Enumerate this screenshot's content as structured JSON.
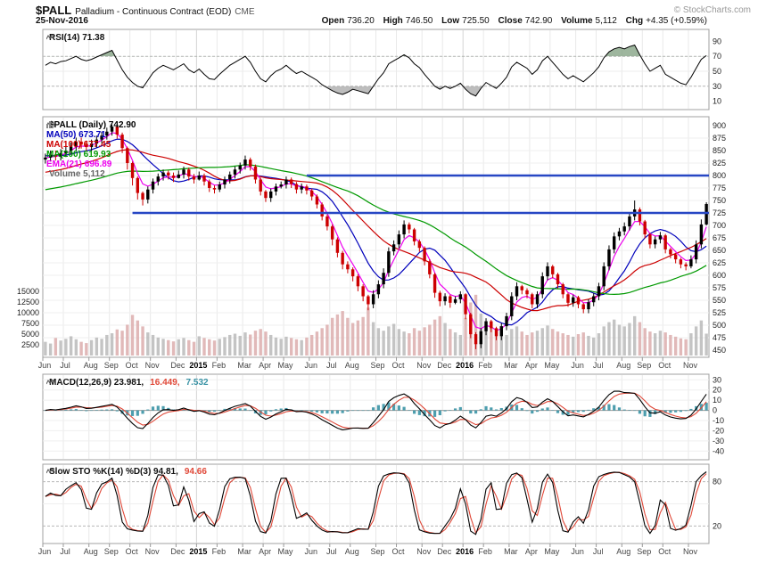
{
  "header": {
    "symbol": "$PALL",
    "description": "Palladium - Continuous Contract (EOD)",
    "exchange": "CME",
    "date": "25-Nov-2016",
    "copyright": "© StockCharts.com",
    "quote": {
      "open_label": "Open",
      "open_value": "736.20",
      "high_label": "High",
      "high_value": "746.50",
      "low_label": "Low",
      "low_value": "725.50",
      "close_label": "Close",
      "close_value": "742.90",
      "volume_label": "Volume",
      "volume_value": "5,112",
      "chg_label": "Chg",
      "chg_value": "+4.35 (+0.59%)"
    }
  },
  "panels": {
    "rsi": {
      "legend": "RSI(14) 71.38"
    },
    "main": {
      "symbol_legend": "$PALL (Daily) 742.90",
      "volume_legend": "Volume 5,112"
    },
    "macd": {
      "legend_main": "MACD(12,26,9) 23.981,",
      "legend_signal": "16.449,",
      "legend_hist": "7.532"
    },
    "sto": {
      "legend_main": "Slow STO %K(14) %D(3) 94.81,",
      "legend_signal": "94.66"
    }
  },
  "chart_data": [
    {
      "id": "rsi",
      "type": "line",
      "label": "RSI(14)",
      "last": 71.38,
      "ylim": [
        0,
        100
      ],
      "yticks": [
        90,
        70,
        50,
        30,
        10
      ],
      "overbought": 70,
      "oversold": 30,
      "line_color": "#000000",
      "fill_above_color": "#7d9e7d",
      "fill_below_color": "#9a9a9a",
      "values": [
        58,
        62,
        60,
        63,
        64,
        67,
        70,
        66,
        64,
        66,
        69,
        72,
        75,
        78,
        65,
        52,
        42,
        35,
        30,
        28,
        38,
        48,
        54,
        58,
        55,
        52,
        56,
        60,
        52,
        48,
        53,
        46,
        40,
        39,
        46,
        52,
        58,
        62,
        66,
        70,
        62,
        50,
        40,
        36,
        44,
        50,
        53,
        58,
        52,
        47,
        50,
        46,
        42,
        38,
        32,
        28,
        24,
        21,
        19,
        22,
        26,
        24,
        22,
        20,
        30,
        40,
        48,
        60,
        64,
        68,
        72,
        68,
        60,
        55,
        46,
        38,
        30,
        26,
        30,
        27,
        30,
        34,
        26,
        20,
        17,
        27,
        35,
        31,
        27,
        34,
        42,
        56,
        62,
        58,
        54,
        46,
        52,
        64,
        70,
        62,
        54,
        46,
        40,
        44,
        40,
        36,
        42,
        48,
        56,
        68,
        76,
        80,
        82,
        80,
        83,
        85,
        72,
        60,
        50,
        54,
        58,
        46,
        42,
        38,
        34,
        32,
        42,
        54,
        66,
        71
      ]
    },
    {
      "id": "price",
      "type": "candlestick",
      "label": "$PALL (Daily)",
      "last": 742.9,
      "ylim": [
        450,
        900
      ],
      "yticks": [
        900,
        875,
        850,
        825,
        800,
        775,
        750,
        725,
        700,
        675,
        650,
        625,
        600,
        575,
        550,
        525,
        500,
        475,
        450
      ],
      "up_color": "#000000",
      "down_color": "#cc0000",
      "vol_up_color": "#b5b5b5",
      "vol_down_color": "#d9a8a8",
      "annotation_color": "#2747c4",
      "annotations": [
        {
          "level": 800,
          "start_week": 51
        },
        {
          "level": 725,
          "start_week": 17
        }
      ],
      "x_labels": [
        "Jun",
        "Jul",
        "Aug",
        "Sep",
        "Oct",
        "Nov",
        "Dec",
        "2015",
        "Feb",
        "Mar",
        "Apr",
        "May",
        "Jun",
        "Jul",
        "Aug",
        "Sep",
        "Oct",
        "Nov",
        "Dec",
        "2016",
        "Feb",
        "Mar",
        "Apr",
        "May",
        "Jun",
        "Jul",
        "Aug",
        "Sep",
        "Oct",
        "Nov"
      ],
      "weeks_per_month": [
        4,
        5,
        4,
        4,
        4,
        5,
        4,
        4,
        5,
        4,
        4,
        5,
        4,
        4,
        5,
        4,
        5,
        4,
        4,
        4,
        5,
        4,
        4,
        5,
        4,
        5,
        4,
        4,
        5,
        4
      ],
      "year_label_indices": [
        7,
        19
      ],
      "open_first": 832,
      "close": [
        836,
        842,
        838,
        845,
        850,
        858,
        868,
        862,
        857,
        864,
        872,
        880,
        888,
        898,
        882,
        855,
        825,
        795,
        765,
        752,
        772,
        788,
        798,
        806,
        800,
        795,
        802,
        812,
        798,
        792,
        800,
        788,
        775,
        772,
        782,
        792,
        802,
        812,
        820,
        832,
        818,
        792,
        768,
        755,
        768,
        778,
        782,
        792,
        783,
        772,
        778,
        770,
        758,
        742,
        718,
        698,
        672,
        645,
        622,
        612,
        598,
        578,
        558,
        542,
        562,
        582,
        605,
        648,
        662,
        682,
        702,
        692,
        668,
        655,
        628,
        602,
        565,
        548,
        558,
        545,
        552,
        562,
        522,
        482,
        462,
        488,
        508,
        494,
        478,
        498,
        518,
        558,
        578,
        570,
        562,
        542,
        562,
        598,
        618,
        602,
        582,
        562,
        545,
        556,
        542,
        532,
        546,
        558,
        578,
        618,
        652,
        678,
        688,
        698,
        718,
        732,
        708,
        682,
        662,
        672,
        680,
        652,
        642,
        632,
        622,
        618,
        632,
        662,
        702,
        742.9
      ],
      "high": [
        844,
        850,
        850,
        853,
        858,
        866,
        876,
        876,
        870,
        872,
        880,
        888,
        896,
        902,
        899,
        886,
        858,
        828,
        798,
        768,
        778,
        794,
        804,
        812,
        810,
        806,
        810,
        818,
        816,
        803,
        808,
        804,
        792,
        780,
        788,
        798,
        808,
        818,
        826,
        840,
        836,
        822,
        796,
        771,
        774,
        784,
        788,
        798,
        796,
        787,
        784,
        782,
        774,
        762,
        746,
        722,
        702,
        676,
        649,
        628,
        616,
        602,
        582,
        561,
        570,
        590,
        614,
        656,
        670,
        690,
        710,
        706,
        695,
        672,
        658,
        632,
        605,
        569,
        564,
        561,
        558,
        568,
        564,
        525,
        486,
        494,
        514,
        511,
        497,
        504,
        525,
        566,
        586,
        581,
        574,
        565,
        568,
        606,
        626,
        621,
        605,
        585,
        565,
        561,
        559,
        545,
        552,
        564,
        585,
        626,
        660,
        686,
        695,
        706,
        726,
        750,
        736,
        711,
        685,
        678,
        687,
        683,
        655,
        645,
        635,
        626,
        640,
        670,
        712,
        746.5
      ],
      "low": [
        824,
        828,
        830,
        830,
        837,
        842,
        850,
        854,
        849,
        849,
        856,
        864,
        872,
        880,
        874,
        845,
        812,
        780,
        752,
        740,
        744,
        764,
        780,
        790,
        792,
        787,
        794,
        794,
        790,
        784,
        790,
        780,
        767,
        764,
        767,
        774,
        784,
        794,
        804,
        812,
        810,
        784,
        760,
        747,
        747,
        760,
        774,
        774,
        775,
        764,
        764,
        762,
        750,
        734,
        710,
        690,
        660,
        636,
        612,
        604,
        588,
        568,
        548,
        530,
        534,
        554,
        574,
        597,
        640,
        654,
        674,
        684,
        660,
        647,
        620,
        594,
        555,
        538,
        540,
        535,
        542,
        544,
        512,
        474,
        452,
        454,
        480,
        486,
        470,
        470,
        490,
        510,
        550,
        562,
        554,
        534,
        534,
        554,
        590,
        594,
        574,
        554,
        537,
        537,
        534,
        524,
        524,
        538,
        550,
        570,
        610,
        644,
        670,
        680,
        690,
        710,
        700,
        674,
        654,
        654,
        664,
        644,
        634,
        624,
        614,
        610,
        614,
        624,
        654,
        700
      ],
      "volume_ylim": [
        0,
        15000
      ],
      "volume_ticks": [
        15000,
        12500,
        10000,
        7500,
        5000,
        2500
      ],
      "volume": [
        3200,
        2800,
        4100,
        3500,
        3900,
        4500,
        3800,
        3200,
        2900,
        3600,
        4200,
        3900,
        4800,
        5200,
        6100,
        5800,
        7200,
        9500,
        8200,
        6800,
        5400,
        4800,
        4200,
        3900,
        3600,
        3300,
        3800,
        4100,
        3600,
        3200,
        4500,
        4100,
        3800,
        3500,
        3900,
        4300,
        4800,
        5100,
        4600,
        5400,
        4900,
        5800,
        6200,
        5600,
        4800,
        4200,
        3900,
        4400,
        4100,
        3800,
        3600,
        4200,
        4800,
        5600,
        6400,
        7200,
        8800,
        9600,
        10400,
        8800,
        7600,
        8200,
        9000,
        11200,
        7800,
        6400,
        5800,
        6800,
        7400,
        6200,
        5600,
        5200,
        6400,
        5800,
        6600,
        7200,
        8400,
        9200,
        7600,
        6200,
        5400,
        4800,
        8800,
        12400,
        14200,
        9800,
        7200,
        6400,
        5800,
        5200,
        4800,
        6200,
        6800,
        5600,
        4800,
        5400,
        5800,
        6400,
        7000,
        6200,
        5600,
        5200,
        4800,
        4400,
        5000,
        5400,
        4600,
        4200,
        5200,
        6800,
        7800,
        8400,
        7200,
        6800,
        7600,
        9200,
        7800,
        6400,
        5600,
        5200,
        5800,
        5400,
        4800,
        4400,
        4000,
        3800,
        5200,
        6800,
        8200,
        5112
      ],
      "overlays": [
        {
          "label": "MA(50) 673.71",
          "color": "#0000bb",
          "type": "sma",
          "window": 10,
          "pre": 840
        },
        {
          "label": "MA(100) 677.45",
          "color": "#cc0000",
          "type": "sma",
          "window": 20,
          "pre": 805
        },
        {
          "label": "MA(200) 619.93",
          "color": "#009900",
          "type": "sma",
          "window": 40,
          "pre": 770
        },
        {
          "label": "EMA(21) 696.89",
          "color": "#ee00ee",
          "type": "ema",
          "alpha": 0.4,
          "seed": 834
        }
      ]
    },
    {
      "id": "macd",
      "type": "line+histogram",
      "label": "MACD(12,26,9)",
      "values": [
        23.981,
        16.449,
        7.532
      ],
      "ylim": [
        -45,
        32
      ],
      "yticks": [
        30,
        20,
        10,
        0,
        -10,
        -20,
        -30,
        -40
      ],
      "macd_color": "#000000",
      "signal_color": "#e04838",
      "hist_color": "#3a93a5",
      "derived_from": "price.close"
    },
    {
      "id": "sto",
      "type": "line",
      "label": "Slow STO %K(14) %D(3)",
      "values": [
        94.81,
        94.66
      ],
      "ylim": [
        0,
        100
      ],
      "yticks": [
        80,
        20
      ],
      "bands": [
        80,
        20
      ],
      "k_color": "#000000",
      "d_color": "#e04838",
      "derived_from": "price"
    }
  ]
}
